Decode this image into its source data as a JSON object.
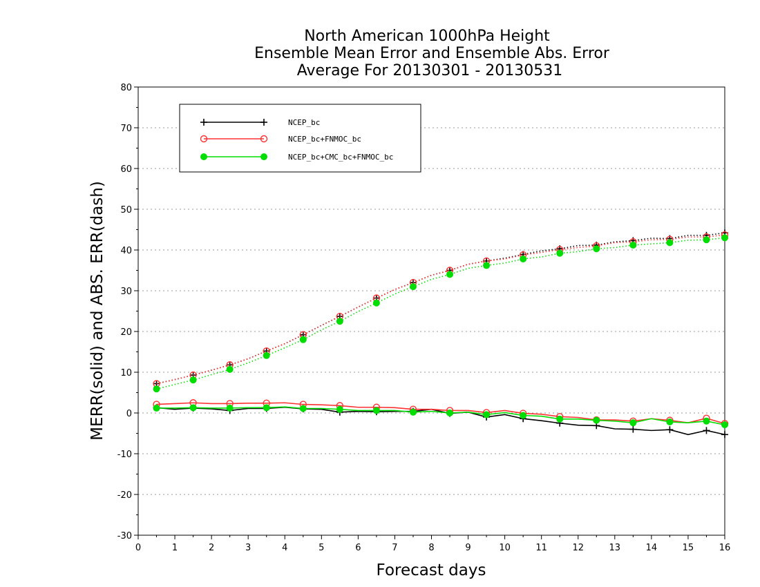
{
  "chart_data": {
    "type": "line",
    "title_lines": [
      "North American 1000hPa Height",
      "Ensemble Mean Error and Ensemble Abs. Error",
      "Average For 20130301 - 20130531"
    ],
    "xlabel": "Forecast days",
    "ylabel": "MERR(solid) and ABS. ERR(dash)",
    "xlim": [
      0,
      16
    ],
    "ylim": [
      -30,
      80
    ],
    "xticks": [
      "0",
      "1",
      "2",
      "3",
      "4",
      "5",
      "6",
      "7",
      "8",
      "9",
      "10",
      "11",
      "12",
      "13",
      "14",
      "15",
      "16"
    ],
    "yticks": [
      "80",
      "70",
      "60",
      "50",
      "40",
      "30",
      "20",
      "10",
      "0",
      "-10",
      "-20",
      "-30"
    ],
    "ytick_values": [
      80,
      70,
      60,
      50,
      40,
      30,
      20,
      10,
      0,
      -10,
      -20,
      -30
    ],
    "grid": "dotted horizontal",
    "legend_position": "top-left",
    "x": [
      0.5,
      1,
      1.5,
      2,
      2.5,
      3,
      3.5,
      4,
      4.5,
      5,
      5.5,
      6,
      6.5,
      7,
      7.5,
      8,
      8.5,
      9,
      9.5,
      10,
      10.5,
      11,
      11.5,
      12,
      12.5,
      13,
      13.5,
      14,
      14.5,
      15,
      15.5,
      16
    ],
    "series": [
      {
        "name": "NCEP_bc",
        "color": "#000000",
        "marker": "plus",
        "merr": [
          1.3,
          0.9,
          1.2,
          1.0,
          0.6,
          1.1,
          1.1,
          1.4,
          1.0,
          0.9,
          0.2,
          0.4,
          0.3,
          0.4,
          0.4,
          0.9,
          -0.1,
          0.2,
          -1.0,
          -0.4,
          -1.4,
          -1.9,
          -2.5,
          -3.0,
          -3.1,
          -3.9,
          -4.0,
          -4.3,
          -4.1,
          -5.3,
          -4.3,
          -5.3
        ],
        "abs_err": [
          7.2,
          8.2,
          9.3,
          10.5,
          11.8,
          13.3,
          15.2,
          17.0,
          19.2,
          21.5,
          23.7,
          26.0,
          28.2,
          30.3,
          32.0,
          33.8,
          35.0,
          36.5,
          37.3,
          38.0,
          38.9,
          39.8,
          40.3,
          41.1,
          41.2,
          42.0,
          42.3,
          42.9,
          42.8,
          43.6,
          43.6,
          44.2
        ]
      },
      {
        "name": "NCEP_bc+FNMOC_bc",
        "color": "#ff3030",
        "marker": "open-circle",
        "merr": [
          2.1,
          2.3,
          2.5,
          2.3,
          2.3,
          2.4,
          2.4,
          2.5,
          2.1,
          2.0,
          1.8,
          1.4,
          1.4,
          1.3,
          0.9,
          0.9,
          0.6,
          0.6,
          0.1,
          0.6,
          -0.1,
          -0.3,
          -0.9,
          -1.1,
          -1.7,
          -1.7,
          -2.0,
          -1.4,
          -1.8,
          -2.4,
          -1.3,
          -2.6
        ],
        "abs_err": [
          7.2,
          8.2,
          9.3,
          10.5,
          11.8,
          13.3,
          15.2,
          17.0,
          19.2,
          21.5,
          23.7,
          26.0,
          28.2,
          30.3,
          32.0,
          33.8,
          35.0,
          36.5,
          37.3,
          37.8,
          38.8,
          39.4,
          40.1,
          40.6,
          41.0,
          41.8,
          42.0,
          42.5,
          42.6,
          43.2,
          43.2,
          43.7
        ]
      },
      {
        "name": "NCEP_bc+CMC_bc+FNMOC_bc",
        "color": "#00dd00",
        "marker": "filled-circle",
        "merr": [
          1.2,
          1.2,
          1.3,
          1.2,
          1.2,
          1.3,
          1.3,
          1.5,
          1.1,
          1.1,
          0.9,
          0.6,
          0.6,
          0.6,
          0.2,
          0.4,
          0.0,
          0.2,
          -0.4,
          0.1,
          -0.6,
          -0.8,
          -1.5,
          -1.5,
          -1.8,
          -2.0,
          -2.4,
          -1.4,
          -2.2,
          -2.4,
          -2.0,
          -2.9
        ],
        "abs_err": [
          5.9,
          7.0,
          8.1,
          9.4,
          10.7,
          12.3,
          14.1,
          16.0,
          18.0,
          20.4,
          22.5,
          24.9,
          27.0,
          29.2,
          31.0,
          32.8,
          34.0,
          35.5,
          36.2,
          36.8,
          37.8,
          38.3,
          39.2,
          39.6,
          40.3,
          40.6,
          41.2,
          41.5,
          41.8,
          42.4,
          42.5,
          43.0
        ]
      }
    ]
  }
}
